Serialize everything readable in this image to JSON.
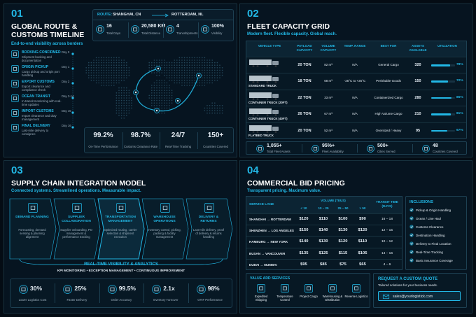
{
  "panel1": {
    "number": "01",
    "title": "GLOBAL ROUTE & CUSTOMS TIMELINE",
    "subtitle": "End-to-end visibility across borders",
    "route_label": "ROUTE:",
    "origin": "SHANGHAI, CN",
    "destination": "ROTTERDAM, NL",
    "stats": [
      {
        "value": "16",
        "label": "Total Days"
      },
      {
        "value": "20,580 KM",
        "label": "Total Distance"
      },
      {
        "value": "4",
        "label": "Transshipments"
      },
      {
        "value": "100%",
        "label": "Visibility"
      }
    ],
    "timeline": [
      {
        "title": "BOOKING CONFIRMED",
        "desc": "Shipment booking and documentation",
        "day": "Day 0"
      },
      {
        "title": "ORIGIN PICKUP",
        "desc": "Cargo pickup and origin port handling",
        "day": "Day 1"
      },
      {
        "title": "EXPORT CUSTOMS",
        "desc": "Export clearance and compliance check",
        "day": "Day 2"
      },
      {
        "title": "OCEAN TRANSIT",
        "desc": "In-transit monitoring with real-time updates",
        "day": "Day 3-14"
      },
      {
        "title": "IMPORT CUSTOMS",
        "desc": "Import clearance and duty management",
        "day": "Day 15"
      },
      {
        "title": "FINAL DELIVERY",
        "desc": "Last-mile delivery to consignee",
        "day": "Day 16"
      }
    ],
    "kpis": [
      {
        "value": "99.2%",
        "label": "On-Time Performance"
      },
      {
        "value": "98.7%",
        "label": "Customs Clearance Rate"
      },
      {
        "value": "24/7",
        "label": "Real-Time Tracking"
      },
      {
        "value": "150+",
        "label": "Countries Covered"
      }
    ]
  },
  "panel2": {
    "number": "02",
    "title": "FLEET CAPACITY GRID",
    "subtitle": "Modern fleet. Flexible capacity. Global reach.",
    "headers": [
      "VEHICLE TYPE",
      "PAYLOAD CAPACITY",
      "VOLUME CAPACITY",
      "TEMP. RANGE",
      "BEST FOR",
      "ASSETS AVAILABLE",
      "UTILIZATION"
    ],
    "rows": [
      {
        "payload": "20 TON",
        "volume": "82 m³",
        "temp": "N/A",
        "best_for": "General Cargo",
        "assets": "320",
        "utilization": 78,
        "utilization_label": "78%"
      },
      {
        "vehicle": "STANDARD TRUCK",
        "payload": "18 TON",
        "volume": "68 m³",
        "temp": "-25°C to +25°C",
        "best_for": "Perishable Goods",
        "assets": "150",
        "utilization": 72,
        "utilization_label": "72%"
      },
      {
        "vehicle": "CONTAINER TRUCK (20FT)",
        "payload": "22 TON",
        "volume": "33 m³",
        "temp": "N/A",
        "best_for": "Containerized Cargo",
        "assets": "280",
        "utilization": 85,
        "utilization_label": "85%"
      },
      {
        "vehicle": "CONTAINER TRUCK (40FT)",
        "payload": "26 TON",
        "volume": "67 m³",
        "temp": "N/A",
        "best_for": "High Volume Cargo",
        "assets": "210",
        "utilization": 81,
        "utilization_label": "81%"
      },
      {
        "vehicle": "FLATBED TRUCK",
        "payload": "20 TON",
        "volume": "52 m³",
        "temp": "N/A",
        "best_for": "Oversized / Heavy",
        "assets": "95",
        "utilization": 67,
        "utilization_label": "67%"
      }
    ],
    "footer": [
      {
        "value": "1,055+",
        "label": "Total Fleet Assets"
      },
      {
        "value": "95%+",
        "label": "Fleet Availability"
      },
      {
        "value": "500+",
        "label": "Cities Served"
      },
      {
        "value": "48",
        "label": "Countries Covered"
      }
    ]
  },
  "panel3": {
    "number": "03",
    "title": "SUPPLY CHAIN INTEGRATION MODEL",
    "subtitle": "Connected systems. Streamlined operations. Measurable impact.",
    "steps": [
      {
        "title": "DEMAND PLANNING",
        "desc": "Forecasting, demand sensing & planning alignment"
      },
      {
        "title": "SUPPLIER COLLABORATION",
        "desc": "Supplier onboarding, PO management & performance tracking"
      },
      {
        "title": "TRANSPORTATION MANAGEMENT",
        "desc": "Optimized routing, carrier selection & shipment execution"
      },
      {
        "title": "WAREHOUSE OPERATIONS",
        "desc": "Inventory control, picking, packing & facility management"
      },
      {
        "title": "DELIVERY & RETURNS",
        "desc": "Last-mile delivery, proof of delivery & returns handling"
      }
    ],
    "visibility": "REAL-TIME VISIBILITY & ANALYTICS",
    "visibility_sub": "KPI MONITORING • EXCEPTION MANAGEMENT • CONTINUOUS IMPROVEMENT",
    "kpis": [
      {
        "value": "30%",
        "label": "Lower Logistics Cost"
      },
      {
        "value": "25%",
        "label": "Faster Delivery"
      },
      {
        "value": "99.5%",
        "label": "Order Accuracy"
      },
      {
        "value": "2.1x",
        "label": "Inventory Turnover"
      },
      {
        "value": "98%",
        "label": "OTIF Performance"
      }
    ]
  },
  "panel4": {
    "number": "04",
    "title": "COMMERCIAL BID PRICING",
    "subtitle": "Transparent pricing. Maximum value.",
    "lane_header": "SERVICE LANE",
    "volume_header": "VOLUME (TEUS)",
    "volume_bands": [
      "< 10",
      "10 – 25",
      "25 – 50",
      "> 50"
    ],
    "transit_header": "TRANSIT TIME (DAYS)",
    "rows": [
      {
        "lane": "SHANGHAI → ROTTERDAM",
        "prices": [
          "$120",
          "$110",
          "$100",
          "$90"
        ],
        "transit": "16 – 18"
      },
      {
        "lane": "SHENZHEN → LOS ANGELES",
        "prices": [
          "$150",
          "$140",
          "$130",
          "$120"
        ],
        "transit": "12 – 15"
      },
      {
        "lane": "HAMBURG → NEW YORK",
        "prices": [
          "$140",
          "$130",
          "$120",
          "$110"
        ],
        "transit": "10 – 12"
      },
      {
        "lane": "BUSAN → VANCOUVER",
        "prices": [
          "$135",
          "$125",
          "$115",
          "$105"
        ],
        "transit": "14 – 16"
      },
      {
        "lane": "DUBAI → MUMBAI",
        "prices": [
          "$95",
          "$85",
          "$75",
          "$65"
        ],
        "transit": "4 – 6"
      }
    ],
    "inclusions_title": "INCLUSIONS",
    "inclusions": [
      "Pickup & Origin Handling",
      "Ocean / Line Haul",
      "Customs Clearance",
      "Destination Handling",
      "Delivery to Final Location",
      "Real-Time Tracking",
      "Basic Insurance Coverage"
    ],
    "value_add_title": "VALUE ADD SERVICES",
    "value_add": [
      "Expedited Shipping",
      "Temperature Control",
      "Project Cargo",
      "Warehousing & Distribution",
      "Reverse Logistics"
    ],
    "quote_title": "REQUEST A CUSTOM QUOTE",
    "quote_sub": "Tailored solutions for your business needs.",
    "email": "sales@yourlogistick.com"
  }
}
